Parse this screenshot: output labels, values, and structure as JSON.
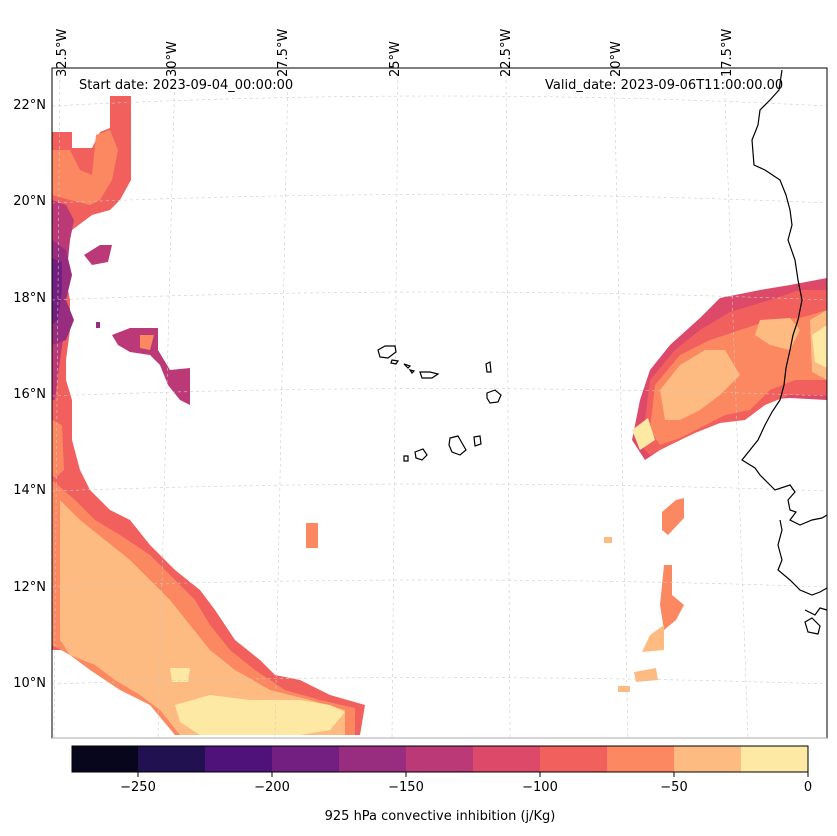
{
  "header": {
    "start_date": "Start date: 2023-09-04_00:00:00",
    "valid_date": "Valid_date: 2023-09-06T11:00:00.00"
  },
  "axes": {
    "lon_labels": [
      "32.5°W",
      "30°W",
      "27.5°W",
      "25°W",
      "22.5°W",
      "20°W",
      "17.5°W"
    ],
    "lat_labels": [
      "22°N",
      "20°N",
      "18°N",
      "16°N",
      "14°N",
      "12°N",
      "10°N"
    ]
  },
  "colorbar": {
    "label": "925 hPa convective inhibition (j/Kg)",
    "ticks": [
      "−250",
      "−200",
      "−150",
      "−100",
      "−50",
      "0"
    ],
    "colors": [
      "#07061c",
      "#221150",
      "#4f127b",
      "#721f81",
      "#982d80",
      "#bc3978",
      "#dd4a69",
      "#f1605d",
      "#fb8861",
      "#febb81",
      "#fde9a4"
    ]
  }
}
